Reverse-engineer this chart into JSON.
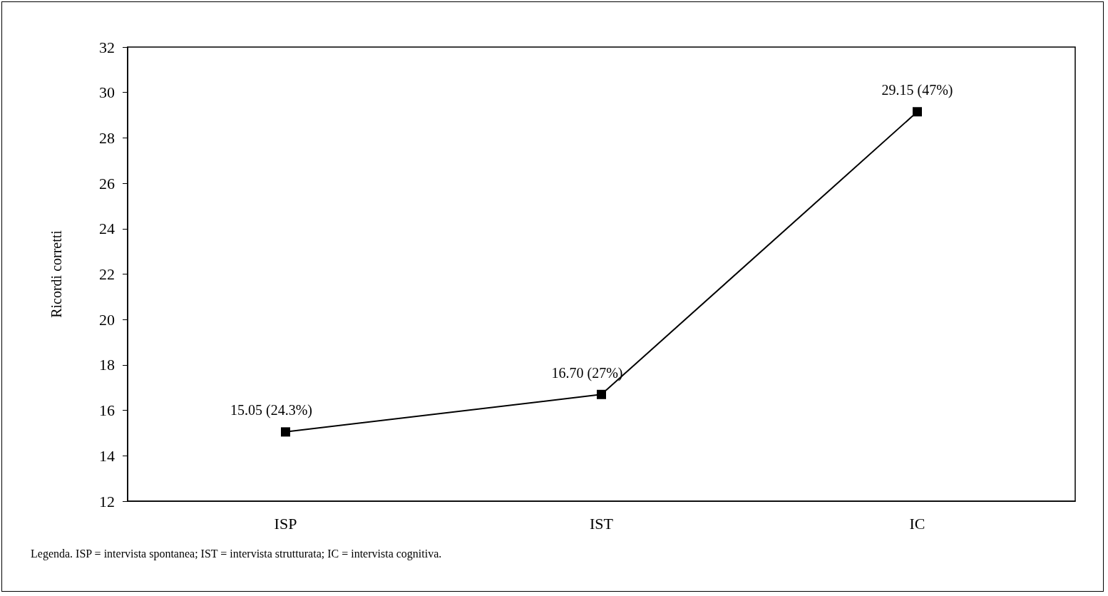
{
  "chart_data": {
    "type": "line",
    "categories": [
      "ISP",
      "IST",
      "IC"
    ],
    "values": [
      15.05,
      16.7,
      29.15
    ],
    "value_labels": [
      "15.05 (24.3%)",
      "16.70 (27%)",
      "29.15 (47%)"
    ],
    "color": "#000000",
    "marker": "square",
    "line_style": "solid",
    "ylabel": "Ricordi corretti",
    "ylim": [
      12,
      32
    ],
    "yticks": [
      12,
      14,
      16,
      18,
      20,
      22,
      24,
      26,
      28,
      30,
      32
    ],
    "grid": false,
    "annotations": [
      "Legenda. ISP = intervista spontanea; IST = intervista strutturata; IC = intervista cognitiva."
    ]
  }
}
